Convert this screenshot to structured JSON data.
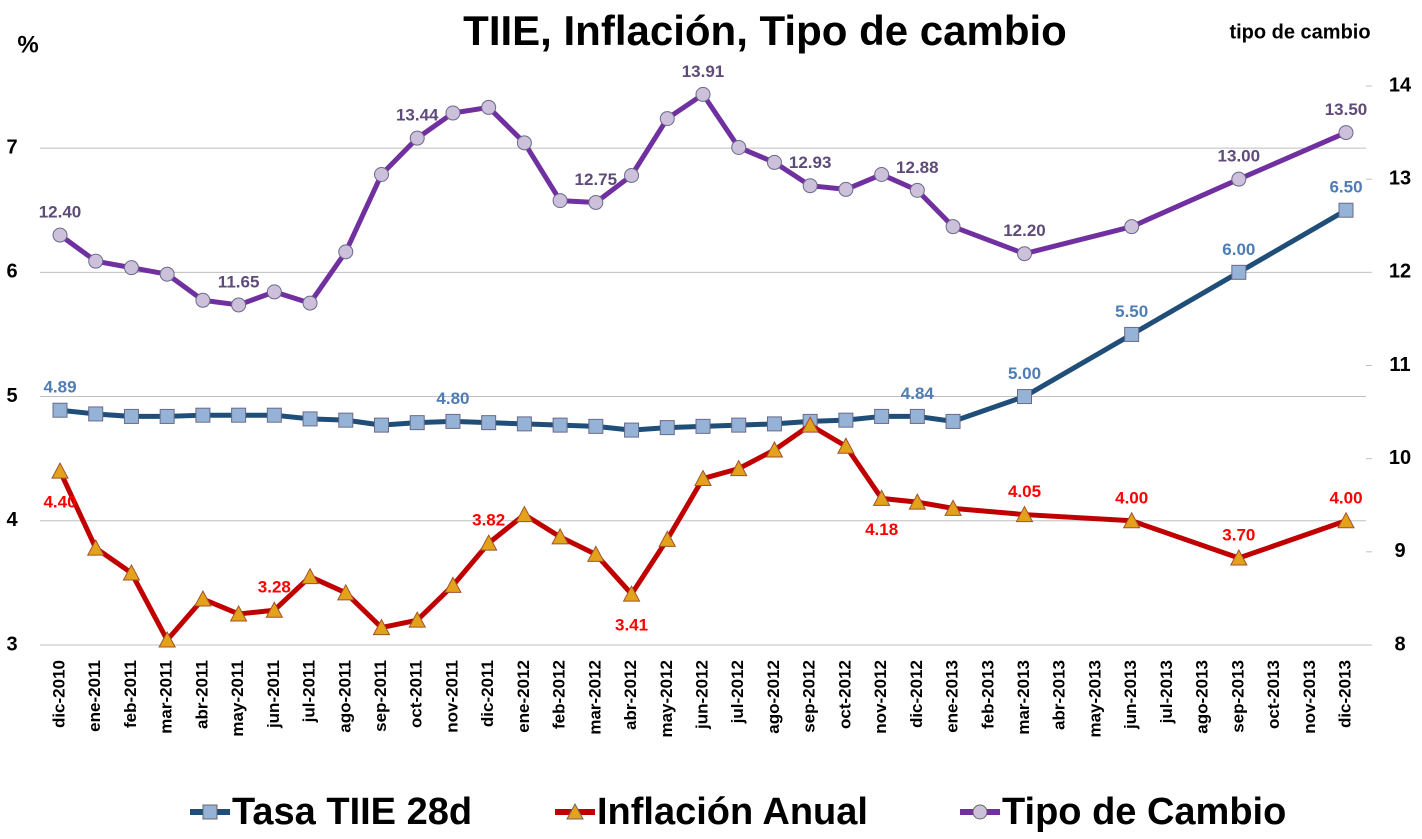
{
  "chart_data": {
    "type": "line",
    "title": "TIIE, Inflación, Tipo de cambio",
    "y_label": "%",
    "y2_label": "tipo de cambio",
    "categories": [
      "dic-2010",
      "ene-2011",
      "feb-2011",
      "mar-2011",
      "abr-2011",
      "may-2011",
      "jun-2011",
      "jul-2011",
      "ago-2011",
      "sep-2011",
      "oct-2011",
      "nov-2011",
      "dic-2011",
      "ene-2012",
      "feb-2012",
      "mar-2012",
      "abr-2012",
      "may-2012",
      "jun-2012",
      "jul-2012",
      "ago-2012",
      "sep-2012",
      "oct-2012",
      "nov-2012",
      "dic-2012",
      "ene-2013",
      "feb-2013",
      "mar-2013",
      "abr-2013",
      "may-2013",
      "jun-2013",
      "jul-2013",
      "ago-2013",
      "sep-2013",
      "oct-2013",
      "nov-2013",
      "dic-2013"
    ],
    "connect_nulls": true,
    "grid": true,
    "legend": "bottom",
    "ylim": [
      3,
      7.5
    ],
    "yticks": [
      3,
      4,
      5,
      6,
      7
    ],
    "y2lim": [
      8,
      14
    ],
    "y2ticks": [
      8,
      9,
      10,
      11,
      12,
      13,
      14
    ],
    "series": [
      {
        "name": "Tasa TIIE 28d",
        "color": "#1f4e79",
        "marker": "square",
        "marker_color": "#95b3d7",
        "label_color": "#4f7db3",
        "values": [
          4.89,
          4.86,
          4.84,
          4.84,
          4.85,
          4.85,
          4.85,
          4.82,
          4.81,
          4.77,
          4.79,
          4.8,
          4.79,
          4.78,
          4.77,
          4.76,
          4.73,
          4.75,
          4.76,
          4.77,
          4.78,
          4.8,
          4.81,
          4.84,
          4.84,
          4.8,
          null,
          5,
          null,
          null,
          5.5,
          null,
          null,
          6,
          null,
          null,
          6.5
        ],
        "value_labels": [
          "4.89",
          null,
          null,
          null,
          null,
          null,
          null,
          null,
          null,
          null,
          null,
          "4.80",
          null,
          null,
          null,
          null,
          null,
          null,
          null,
          null,
          null,
          null,
          null,
          null,
          "4.84",
          null,
          null,
          "5.00",
          null,
          null,
          "5.50",
          null,
          null,
          "6.00",
          null,
          null,
          "6.50"
        ]
      },
      {
        "name": "Inflación Anual",
        "color": "#c00000",
        "marker": "triangle",
        "marker_color": "#e3a21a",
        "label_color": "#ff0000",
        "values": [
          4.4,
          3.78,
          3.58,
          3.04,
          3.37,
          3.25,
          3.28,
          3.55,
          3.42,
          3.14,
          3.2,
          3.48,
          3.82,
          4.05,
          3.87,
          3.73,
          3.41,
          3.85,
          4.34,
          4.42,
          4.57,
          4.77,
          4.6,
          4.18,
          4.15,
          4.1,
          null,
          4.05,
          null,
          null,
          4,
          null,
          null,
          3.7,
          null,
          null,
          4
        ],
        "value_labels": [
          "4.40",
          null,
          null,
          null,
          null,
          null,
          "3.28",
          null,
          null,
          null,
          null,
          null,
          "3.82",
          null,
          null,
          null,
          "3.41",
          null,
          null,
          null,
          null,
          null,
          null,
          "4.18",
          null,
          null,
          null,
          "4.05",
          null,
          null,
          "4.00",
          null,
          null,
          "3.70",
          null,
          null,
          "4.00"
        ]
      },
      {
        "name": "Tipo de Cambio",
        "color": "#7030a0",
        "marker": "circle",
        "marker_color": "#ccc0da",
        "label_color": "#5f4b7a",
        "axis": "y2",
        "values": [
          12.4,
          12.12,
          12.05,
          11.98,
          11.7,
          11.65,
          11.79,
          11.67,
          12.22,
          13.05,
          13.44,
          13.71,
          13.77,
          13.39,
          12.77,
          12.75,
          13.04,
          13.65,
          13.91,
          13.34,
          13.18,
          12.93,
          12.89,
          13.05,
          12.88,
          12.49,
          null,
          12.2,
          null,
          null,
          12.49,
          null,
          null,
          13,
          null,
          null,
          13.5
        ],
        "value_labels": [
          "12.40",
          null,
          null,
          null,
          null,
          "11.65",
          null,
          null,
          null,
          null,
          "13.44",
          null,
          null,
          null,
          null,
          "12.75",
          null,
          null,
          "13.91",
          null,
          null,
          "12.93",
          null,
          null,
          "12.88",
          null,
          null,
          "12.20",
          null,
          null,
          null,
          null,
          null,
          "13.00",
          null,
          null,
          "13.50"
        ]
      }
    ]
  }
}
